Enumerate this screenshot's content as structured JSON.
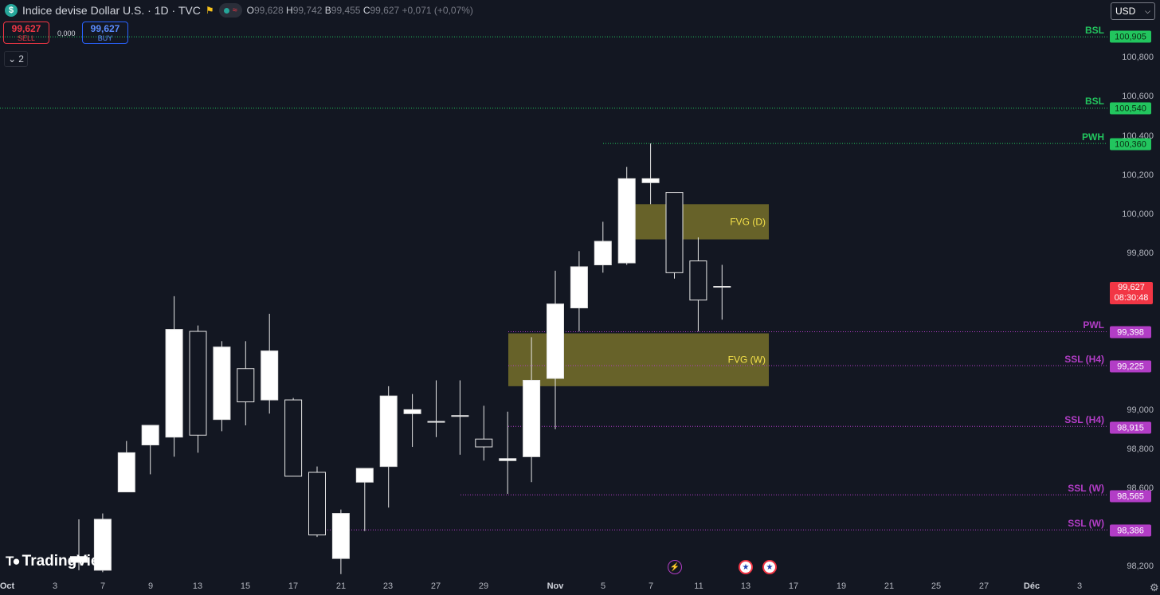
{
  "header": {
    "symbol_icon": "$",
    "title": "Indice devise Dollar U.S. · 1D · TVC",
    "flag_icon": "lightning-flag-icon",
    "open_key": "O",
    "open": "99,628",
    "high_key": "H",
    "high": "99,742",
    "low_key": "B",
    "low": "99,455",
    "close_key": "C",
    "close": "99,627",
    "change": "+0,071 (+0,07%)"
  },
  "trade": {
    "sell_price": "99,627",
    "sell_label": "SELL",
    "buy_price": "99,627",
    "buy_label": "BUY",
    "spread": "0,000"
  },
  "indicators_count": "2",
  "currency": "USD",
  "price_axis": {
    "ticks": [
      "100,800",
      "100,600",
      "100,400",
      "100,200",
      "100,000",
      "99,800",
      "99,000",
      "98,800",
      "98,600",
      "98,200"
    ],
    "last_price": "99,627",
    "countdown": "08:30:48"
  },
  "levels": [
    {
      "label": "BSL",
      "price": "100,905",
      "color": "#22c55e"
    },
    {
      "label": "BSL",
      "price": "100,540",
      "color": "#22c55e"
    },
    {
      "label": "PWH",
      "price": "100,360",
      "color": "#22c55e"
    },
    {
      "label": "PWL",
      "price": "99,398",
      "color": "#b23dc6"
    },
    {
      "label": "SSL (H4)",
      "price": "99,225",
      "color": "#b23dc6"
    },
    {
      "label": "SSL (H4)",
      "price": "98,915",
      "color": "#b23dc6"
    },
    {
      "label": "SSL (W)",
      "price": "98,565",
      "color": "#b23dc6"
    },
    {
      "label": "SSL (W)",
      "price": "98,386",
      "color": "#b23dc6"
    }
  ],
  "zones": [
    {
      "label": "FVG (D)"
    },
    {
      "label": "FVG (W)"
    }
  ],
  "time_axis": [
    "Oct",
    "3",
    "7",
    "9",
    "13",
    "15",
    "17",
    "21",
    "23",
    "27",
    "29",
    "Nov",
    "5",
    "7",
    "11",
    "13",
    "17",
    "19",
    "21",
    "25",
    "27",
    "Déc",
    "3"
  ],
  "logo_text": "TradingView",
  "colors": {
    "background": "#131722",
    "sell": "#f23645",
    "buy": "#2962ff",
    "fvg": "#77702a",
    "green": "#22c55e",
    "purple": "#b23dc6"
  },
  "chart_data": {
    "type": "candlestick",
    "candles": [
      {
        "o": 98.22,
        "h": 98.44,
        "l": 98.18,
        "c": 98.25
      },
      {
        "o": 98.18,
        "h": 98.47,
        "l": 98.17,
        "c": 98.44
      },
      {
        "o": 98.58,
        "h": 98.84,
        "l": 98.58,
        "c": 98.78
      },
      {
        "o": 98.82,
        "h": 98.92,
        "l": 98.67,
        "c": 98.92
      },
      {
        "o": 98.86,
        "h": 99.58,
        "l": 98.76,
        "c": 99.41
      },
      {
        "o": 99.4,
        "h": 99.43,
        "l": 98.78,
        "c": 98.87
      },
      {
        "o": 98.95,
        "h": 99.35,
        "l": 98.89,
        "c": 99.32
      },
      {
        "o": 99.21,
        "h": 99.35,
        "l": 98.92,
        "c": 99.04
      },
      {
        "o": 99.05,
        "h": 99.49,
        "l": 98.98,
        "c": 99.3
      },
      {
        "o": 99.05,
        "h": 99.06,
        "l": 98.66,
        "c": 98.66
      },
      {
        "o": 98.68,
        "h": 98.71,
        "l": 98.35,
        "c": 98.36
      },
      {
        "o": 98.24,
        "h": 98.49,
        "l": 98.16,
        "c": 98.47
      },
      {
        "o": 98.63,
        "h": 98.7,
        "l": 98.38,
        "c": 98.7
      },
      {
        "o": 98.71,
        "h": 99.12,
        "l": 98.5,
        "c": 99.07
      },
      {
        "o": 98.98,
        "h": 99.08,
        "l": 98.81,
        "c": 99.0
      },
      {
        "o": 98.94,
        "h": 99.15,
        "l": 98.86,
        "c": 98.94
      },
      {
        "o": 98.97,
        "h": 99.15,
        "l": 98.77,
        "c": 98.97
      },
      {
        "o": 98.85,
        "h": 99.02,
        "l": 98.74,
        "c": 98.81
      },
      {
        "o": 98.74,
        "h": 98.99,
        "l": 98.57,
        "c": 98.75
      },
      {
        "o": 98.76,
        "h": 99.37,
        "l": 98.63,
        "c": 99.15
      },
      {
        "o": 99.16,
        "h": 99.71,
        "l": 98.9,
        "c": 99.54
      },
      {
        "o": 99.52,
        "h": 99.81,
        "l": 99.4,
        "c": 99.73
      },
      {
        "o": 99.74,
        "h": 99.96,
        "l": 99.7,
        "c": 99.86
      },
      {
        "o": 99.75,
        "h": 100.24,
        "l": 99.74,
        "c": 100.18
      },
      {
        "o": 100.16,
        "h": 100.36,
        "l": 100.05,
        "c": 100.18
      },
      {
        "o": 100.11,
        "h": 100.11,
        "l": 99.67,
        "c": 99.7
      },
      {
        "o": 99.76,
        "h": 99.88,
        "l": 99.4,
        "c": 99.56
      },
      {
        "o": 99.63,
        "h": 99.74,
        "l": 99.46,
        "c": 99.63
      }
    ]
  }
}
